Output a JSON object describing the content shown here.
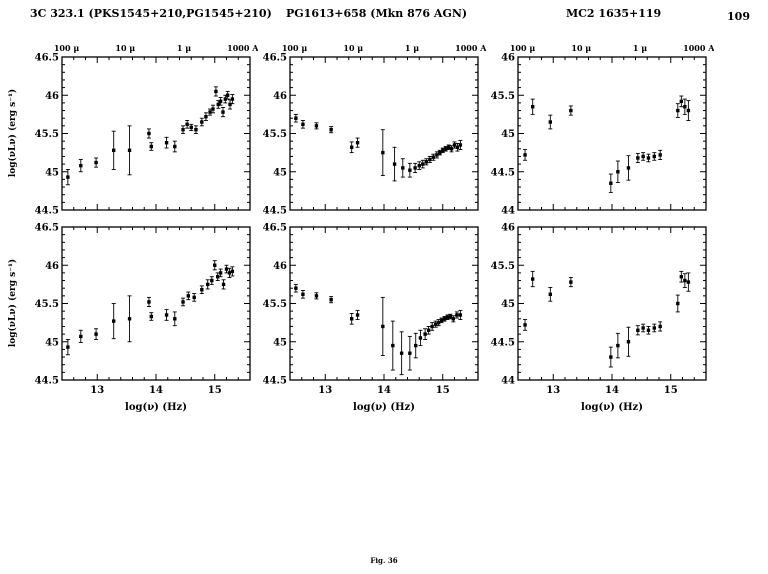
{
  "figure": {
    "page_number": "109",
    "caption": "Fig. 36",
    "titles": [
      "3C 323.1 (PKS1545+210,PG1545+210)",
      "PG1613+658 (Mkn 876 AGN)",
      "MC2 1635+119"
    ],
    "y_axis_label": "log(νLν) (erg s⁻¹)",
    "x_axis_label": "log(ν) (Hz)",
    "top_axis_labels": [
      "100 μ",
      "10 μ",
      "1 μ",
      "1000 A"
    ],
    "top_axis_positions": [
      12.477,
      13.477,
      14.477,
      15.477
    ],
    "point_format": "[log10(nu/Hz), log10(nuLnu/(erg/s)), y_error]"
  },
  "chart_data": [
    {
      "type": "scatter",
      "object": "3C 323.1 (PKS1545+210,PG1545+210)",
      "row": 0,
      "col": 0,
      "xlabel": "log(ν) (Hz)",
      "ylabel": "log(νLν) (erg s⁻¹)",
      "xlim": [
        12.4,
        15.6
      ],
      "ylim": [
        44.5,
        46.5
      ],
      "xticks": [
        13,
        14,
        15
      ],
      "yticks": [
        44.5,
        45,
        45.5,
        46,
        46.5
      ],
      "points": [
        [
          12.5,
          44.93,
          0.1
        ],
        [
          12.72,
          45.08,
          0.08
        ],
        [
          12.98,
          45.12,
          0.06
        ],
        [
          13.28,
          45.28,
          0.25
        ],
        [
          13.55,
          45.28,
          0.32
        ],
        [
          13.88,
          45.5,
          0.06
        ],
        [
          13.92,
          45.33,
          0.05
        ],
        [
          14.18,
          45.38,
          0.07
        ],
        [
          14.32,
          45.33,
          0.07
        ],
        [
          14.46,
          45.55,
          0.05
        ],
        [
          14.53,
          45.62,
          0.05
        ],
        [
          14.6,
          45.58,
          0.04
        ],
        [
          14.68,
          45.55,
          0.05
        ],
        [
          14.78,
          45.65,
          0.05
        ],
        [
          14.85,
          45.72,
          0.05
        ],
        [
          14.92,
          45.78,
          0.04
        ],
        [
          14.97,
          45.82,
          0.05
        ],
        [
          15.02,
          46.05,
          0.06
        ],
        [
          15.06,
          45.88,
          0.05
        ],
        [
          15.1,
          45.92,
          0.05
        ],
        [
          15.14,
          45.78,
          0.06
        ],
        [
          15.18,
          45.95,
          0.05
        ],
        [
          15.22,
          46.0,
          0.05
        ],
        [
          15.26,
          45.88,
          0.06
        ],
        [
          15.3,
          45.95,
          0.06
        ]
      ]
    },
    {
      "type": "scatter",
      "object": "PG1613+658 (Mkn 876 AGN)",
      "row": 0,
      "col": 1,
      "xlabel": "log(ν) (Hz)",
      "ylabel": "log(νLν) (erg s⁻¹)",
      "xlim": [
        12.4,
        15.6
      ],
      "ylim": [
        44.5,
        46.5
      ],
      "xticks": [
        13,
        14,
        15
      ],
      "yticks": [
        44.5,
        45,
        45.5,
        46,
        46.5
      ],
      "points": [
        [
          12.5,
          45.7,
          0.05
        ],
        [
          12.62,
          45.62,
          0.05
        ],
        [
          12.85,
          45.6,
          0.04
        ],
        [
          13.1,
          45.55,
          0.04
        ],
        [
          13.45,
          45.32,
          0.07
        ],
        [
          13.55,
          45.38,
          0.06
        ],
        [
          13.98,
          45.25,
          0.3
        ],
        [
          14.18,
          45.1,
          0.22
        ],
        [
          14.32,
          45.05,
          0.12
        ],
        [
          14.44,
          45.02,
          0.09
        ],
        [
          14.53,
          45.05,
          0.06
        ],
        [
          14.6,
          45.08,
          0.05
        ],
        [
          14.66,
          45.1,
          0.05
        ],
        [
          14.72,
          45.13,
          0.04
        ],
        [
          14.78,
          45.16,
          0.04
        ],
        [
          14.84,
          45.19,
          0.04
        ],
        [
          14.9,
          45.22,
          0.04
        ],
        [
          14.95,
          45.25,
          0.03
        ],
        [
          15.0,
          45.28,
          0.03
        ],
        [
          15.05,
          45.3,
          0.03
        ],
        [
          15.1,
          45.32,
          0.03
        ],
        [
          15.15,
          45.3,
          0.04
        ],
        [
          15.2,
          45.35,
          0.04
        ],
        [
          15.25,
          45.32,
          0.05
        ],
        [
          15.3,
          45.35,
          0.06
        ]
      ]
    },
    {
      "type": "scatter",
      "object": "MC2 1635+119",
      "row": 0,
      "col": 2,
      "xlabel": "log(ν) (Hz)",
      "ylabel": "log(νLν) (erg s⁻¹)",
      "xlim": [
        12.4,
        15.6
      ],
      "ylim": [
        44,
        46
      ],
      "xticks": [
        13,
        14,
        15
      ],
      "yticks": [
        44,
        44.5,
        45,
        45.5,
        46
      ],
      "points": [
        [
          12.52,
          44.72,
          0.07
        ],
        [
          12.65,
          45.35,
          0.1
        ],
        [
          12.95,
          45.15,
          0.09
        ],
        [
          13.3,
          45.3,
          0.06
        ],
        [
          13.98,
          44.35,
          0.12
        ],
        [
          14.1,
          44.5,
          0.14
        ],
        [
          14.28,
          44.55,
          0.16
        ],
        [
          14.44,
          44.68,
          0.06
        ],
        [
          14.53,
          44.7,
          0.05
        ],
        [
          14.62,
          44.68,
          0.05
        ],
        [
          14.72,
          44.7,
          0.05
        ],
        [
          14.82,
          44.72,
          0.06
        ],
        [
          15.12,
          45.3,
          0.09
        ],
        [
          15.18,
          45.42,
          0.07
        ],
        [
          15.24,
          45.35,
          0.1
        ],
        [
          15.3,
          45.3,
          0.13
        ]
      ]
    },
    {
      "type": "scatter",
      "object": "3C 323.1 (PKS1545+210,PG1545+210)",
      "row": 1,
      "col": 0,
      "xlabel": "log(ν) (Hz)",
      "ylabel": "log(νLν) (erg s⁻¹)",
      "xlim": [
        12.4,
        15.6
      ],
      "ylim": [
        44.5,
        46.5
      ],
      "xticks": [
        13,
        14,
        15
      ],
      "yticks": [
        44.5,
        45,
        45.5,
        46,
        46.5
      ],
      "points": [
        [
          12.5,
          44.93,
          0.1
        ],
        [
          12.72,
          45.07,
          0.08
        ],
        [
          12.98,
          45.1,
          0.07
        ],
        [
          13.28,
          45.27,
          0.23
        ],
        [
          13.55,
          45.3,
          0.3
        ],
        [
          13.88,
          45.52,
          0.06
        ],
        [
          13.92,
          45.33,
          0.05
        ],
        [
          14.18,
          45.35,
          0.07
        ],
        [
          14.32,
          45.3,
          0.09
        ],
        [
          14.46,
          45.52,
          0.05
        ],
        [
          14.55,
          45.6,
          0.05
        ],
        [
          14.65,
          45.58,
          0.05
        ],
        [
          14.78,
          45.68,
          0.05
        ],
        [
          14.88,
          45.75,
          0.06
        ],
        [
          14.95,
          45.8,
          0.05
        ],
        [
          15.0,
          46.0,
          0.06
        ],
        [
          15.05,
          45.85,
          0.05
        ],
        [
          15.1,
          45.9,
          0.05
        ],
        [
          15.15,
          45.75,
          0.06
        ],
        [
          15.2,
          45.95,
          0.05
        ],
        [
          15.25,
          45.9,
          0.06
        ],
        [
          15.3,
          45.92,
          0.06
        ]
      ]
    },
    {
      "type": "scatter",
      "object": "PG1613+658 (Mkn 876 AGN)",
      "row": 1,
      "col": 1,
      "xlabel": "log(ν) (Hz)",
      "ylabel": "log(νLν) (erg s⁻¹)",
      "xlim": [
        12.4,
        15.6
      ],
      "ylim": [
        44.5,
        46.5
      ],
      "xticks": [
        13,
        14,
        15
      ],
      "yticks": [
        44.5,
        45,
        45.5,
        46,
        46.5
      ],
      "points": [
        [
          12.5,
          45.7,
          0.05
        ],
        [
          12.62,
          45.62,
          0.05
        ],
        [
          12.85,
          45.6,
          0.04
        ],
        [
          13.1,
          45.55,
          0.04
        ],
        [
          13.45,
          45.3,
          0.07
        ],
        [
          13.55,
          45.35,
          0.06
        ],
        [
          13.98,
          45.2,
          0.38
        ],
        [
          14.15,
          44.95,
          0.32
        ],
        [
          14.3,
          44.85,
          0.28
        ],
        [
          14.44,
          44.85,
          0.22
        ],
        [
          14.54,
          44.95,
          0.16
        ],
        [
          14.62,
          45.05,
          0.1
        ],
        [
          14.7,
          45.1,
          0.07
        ],
        [
          14.76,
          45.15,
          0.05
        ],
        [
          14.82,
          45.2,
          0.05
        ],
        [
          14.88,
          45.23,
          0.04
        ],
        [
          14.93,
          45.25,
          0.04
        ],
        [
          14.98,
          45.28,
          0.03
        ],
        [
          15.03,
          45.3,
          0.03
        ],
        [
          15.08,
          45.32,
          0.03
        ],
        [
          15.13,
          45.33,
          0.03
        ],
        [
          15.18,
          45.3,
          0.04
        ],
        [
          15.24,
          45.35,
          0.04
        ],
        [
          15.3,
          45.35,
          0.06
        ]
      ]
    },
    {
      "type": "scatter",
      "object": "MC2 1635+119",
      "row": 1,
      "col": 2,
      "xlabel": "log(ν) (Hz)",
      "ylabel": "log(νLν) (erg s⁻¹)",
      "xlim": [
        12.4,
        15.6
      ],
      "ylim": [
        44,
        46
      ],
      "xticks": [
        13,
        14,
        15
      ],
      "yticks": [
        44,
        44.5,
        45,
        45.5,
        46
      ],
      "points": [
        [
          12.52,
          44.72,
          0.07
        ],
        [
          12.65,
          45.32,
          0.1
        ],
        [
          12.95,
          45.12,
          0.09
        ],
        [
          13.3,
          45.28,
          0.06
        ],
        [
          13.98,
          44.3,
          0.13
        ],
        [
          14.1,
          44.45,
          0.16
        ],
        [
          14.28,
          44.5,
          0.19
        ],
        [
          14.44,
          44.65,
          0.06
        ],
        [
          14.53,
          44.68,
          0.05
        ],
        [
          14.62,
          44.65,
          0.05
        ],
        [
          14.72,
          44.68,
          0.05
        ],
        [
          14.82,
          44.7,
          0.06
        ],
        [
          15.12,
          45.0,
          0.11
        ],
        [
          15.18,
          45.35,
          0.07
        ],
        [
          15.24,
          45.3,
          0.09
        ],
        [
          15.3,
          45.28,
          0.12
        ]
      ]
    }
  ]
}
